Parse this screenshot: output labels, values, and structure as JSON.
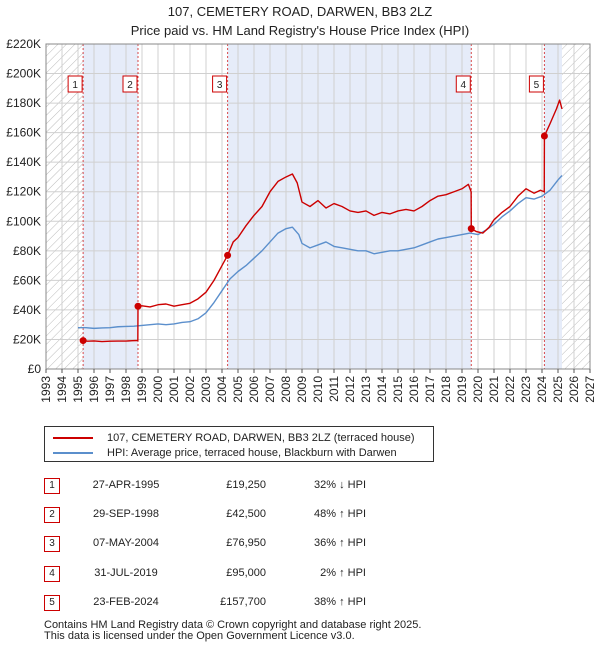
{
  "title": "107, CEMETERY ROAD, DARWEN, BB3 2LZ",
  "subtitle": "Price paid vs. HM Land Registry's House Price Index (HPI)",
  "colors": {
    "property": "#cc0000",
    "hpi": "#5b8fcc",
    "shade": "#e6ecf9",
    "grid": "#d0d0d0"
  },
  "chart_data": {
    "type": "line",
    "title": "107, CEMETERY ROAD, DARWEN, BB3 2LZ",
    "subtitle": "Price paid vs. HM Land Registry's House Price Index (HPI)",
    "xlim": [
      1993,
      2027
    ],
    "ylim": [
      0,
      220000
    ],
    "y_ticks": [
      {
        "value": 0,
        "label": "£0"
      },
      {
        "value": 20000,
        "label": "£20K"
      },
      {
        "value": 40000,
        "label": "£40K"
      },
      {
        "value": 60000,
        "label": "£60K"
      },
      {
        "value": 80000,
        "label": "£80K"
      },
      {
        "value": 100000,
        "label": "£100K"
      },
      {
        "value": 120000,
        "label": "£120K"
      },
      {
        "value": 140000,
        "label": "£140K"
      },
      {
        "value": 160000,
        "label": "£160K"
      },
      {
        "value": 180000,
        "label": "£180K"
      },
      {
        "value": 200000,
        "label": "£200K"
      },
      {
        "value": 220000,
        "label": "£220K"
      }
    ],
    "x_ticks": [
      "1993",
      "1994",
      "1995",
      "1996",
      "1997",
      "1998",
      "1999",
      "2000",
      "2001",
      "2002",
      "2003",
      "2004",
      "2005",
      "2006",
      "2007",
      "2008",
      "2009",
      "2010",
      "2011",
      "2012",
      "2013",
      "2014",
      "2015",
      "2016",
      "2017",
      "2018",
      "2019",
      "2020",
      "2021",
      "2022",
      "2023",
      "2024",
      "2025",
      "2026",
      "2027"
    ],
    "grid": true,
    "hatched_ranges": [
      [
        1993,
        1995.32
      ],
      [
        2025.25,
        2027
      ]
    ],
    "shaded_ranges": [
      [
        1995.32,
        1998.75
      ],
      [
        2004.35,
        2019.58
      ],
      [
        2024.15,
        2025.25
      ]
    ],
    "series": [
      {
        "name": "107, CEMETERY ROAD, DARWEN, BB3 2LZ (terraced house)",
        "color": "#cc0000",
        "points": [
          [
            1995.32,
            19250
          ],
          [
            1995.6,
            18800
          ],
          [
            1996.0,
            19000
          ],
          [
            1996.5,
            18600
          ],
          [
            1997.0,
            18800
          ],
          [
            1997.5,
            18900
          ],
          [
            1998.0,
            18900
          ],
          [
            1998.4,
            19200
          ],
          [
            1998.74,
            19300
          ],
          [
            1998.75,
            42500
          ],
          [
            1999.0,
            42800
          ],
          [
            1999.5,
            42000
          ],
          [
            2000.0,
            43500
          ],
          [
            2000.5,
            44000
          ],
          [
            2001.0,
            42500
          ],
          [
            2001.5,
            43500
          ],
          [
            2002.0,
            44500
          ],
          [
            2002.5,
            47500
          ],
          [
            2003.0,
            52000
          ],
          [
            2003.5,
            60000
          ],
          [
            2004.0,
            70000
          ],
          [
            2004.35,
            76950
          ],
          [
            2004.7,
            86000
          ],
          [
            2005.0,
            89000
          ],
          [
            2005.5,
            97000
          ],
          [
            2006.0,
            104000
          ],
          [
            2006.5,
            110000
          ],
          [
            2007.0,
            120000
          ],
          [
            2007.5,
            127000
          ],
          [
            2008.0,
            130000
          ],
          [
            2008.4,
            132000
          ],
          [
            2008.7,
            126000
          ],
          [
            2009.0,
            113000
          ],
          [
            2009.5,
            110000
          ],
          [
            2010.0,
            114000
          ],
          [
            2010.5,
            109000
          ],
          [
            2011.0,
            112000
          ],
          [
            2011.5,
            110000
          ],
          [
            2012.0,
            107000
          ],
          [
            2012.5,
            106000
          ],
          [
            2013.0,
            107000
          ],
          [
            2013.5,
            104000
          ],
          [
            2014.0,
            106000
          ],
          [
            2014.5,
            105000
          ],
          [
            2015.0,
            107000
          ],
          [
            2015.5,
            108000
          ],
          [
            2016.0,
            107000
          ],
          [
            2016.5,
            110000
          ],
          [
            2017.0,
            114000
          ],
          [
            2017.5,
            117000
          ],
          [
            2018.0,
            118000
          ],
          [
            2018.5,
            120000
          ],
          [
            2019.0,
            122000
          ],
          [
            2019.4,
            125000
          ],
          [
            2019.57,
            120000
          ],
          [
            2019.58,
            95000
          ],
          [
            2019.9,
            93000
          ],
          [
            2020.3,
            92000
          ],
          [
            2020.7,
            96000
          ],
          [
            2021.0,
            101000
          ],
          [
            2021.5,
            106000
          ],
          [
            2022.0,
            110000
          ],
          [
            2022.5,
            117000
          ],
          [
            2023.0,
            122000
          ],
          [
            2023.5,
            119000
          ],
          [
            2023.9,
            121000
          ],
          [
            2024.14,
            120000
          ],
          [
            2024.15,
            157700
          ],
          [
            2024.5,
            166000
          ],
          [
            2024.9,
            176000
          ],
          [
            2025.1,
            182000
          ],
          [
            2025.25,
            176000
          ]
        ]
      },
      {
        "name": "HPI: Average price, terraced house, Blackburn with Darwen",
        "color": "#5b8fcc",
        "points": [
          [
            1995.0,
            28000
          ],
          [
            1995.5,
            28000
          ],
          [
            1996.0,
            27500
          ],
          [
            1996.5,
            27800
          ],
          [
            1997.0,
            28000
          ],
          [
            1997.5,
            28600
          ],
          [
            1998.0,
            28800
          ],
          [
            1998.5,
            29000
          ],
          [
            1999.0,
            29500
          ],
          [
            1999.5,
            30000
          ],
          [
            2000.0,
            30500
          ],
          [
            2000.5,
            30000
          ],
          [
            2001.0,
            30500
          ],
          [
            2001.5,
            31500
          ],
          [
            2002.0,
            32000
          ],
          [
            2002.5,
            34000
          ],
          [
            2003.0,
            38000
          ],
          [
            2003.5,
            45000
          ],
          [
            2004.0,
            53000
          ],
          [
            2004.5,
            61000
          ],
          [
            2005.0,
            66000
          ],
          [
            2005.5,
            70000
          ],
          [
            2006.0,
            75000
          ],
          [
            2006.5,
            80000
          ],
          [
            2007.0,
            86000
          ],
          [
            2007.5,
            92000
          ],
          [
            2008.0,
            95000
          ],
          [
            2008.4,
            96000
          ],
          [
            2008.8,
            91000
          ],
          [
            2009.0,
            85000
          ],
          [
            2009.5,
            82000
          ],
          [
            2010.0,
            84000
          ],
          [
            2010.5,
            86000
          ],
          [
            2011.0,
            83000
          ],
          [
            2011.5,
            82000
          ],
          [
            2012.0,
            81000
          ],
          [
            2012.5,
            80000
          ],
          [
            2013.0,
            80000
          ],
          [
            2013.5,
            78000
          ],
          [
            2014.0,
            79000
          ],
          [
            2014.5,
            80000
          ],
          [
            2015.0,
            80000
          ],
          [
            2015.5,
            81000
          ],
          [
            2016.0,
            82000
          ],
          [
            2016.5,
            84000
          ],
          [
            2017.0,
            86000
          ],
          [
            2017.5,
            88000
          ],
          [
            2018.0,
            89000
          ],
          [
            2018.5,
            90000
          ],
          [
            2019.0,
            91000
          ],
          [
            2019.5,
            92000
          ],
          [
            2020.0,
            91000
          ],
          [
            2020.5,
            94000
          ],
          [
            2021.0,
            98000
          ],
          [
            2021.5,
            103000
          ],
          [
            2022.0,
            107000
          ],
          [
            2022.5,
            112000
          ],
          [
            2023.0,
            116000
          ],
          [
            2023.5,
            115000
          ],
          [
            2024.0,
            117000
          ],
          [
            2024.5,
            121000
          ],
          [
            2025.0,
            128000
          ],
          [
            2025.25,
            131000
          ]
        ]
      }
    ],
    "sales": [
      {
        "n": "1",
        "year": 1995.32,
        "date": "27-APR-1995",
        "price": 19250,
        "price_label": "£19,250",
        "hpi": "32% ↓ HPI"
      },
      {
        "n": "2",
        "year": 1998.75,
        "date": "29-SEP-1998",
        "price": 42500,
        "price_label": "£42,500",
        "hpi": "48% ↑ HPI"
      },
      {
        "n": "3",
        "year": 2004.35,
        "date": "07-MAY-2004",
        "price": 76950,
        "price_label": "£76,950",
        "hpi": "36% ↑ HPI"
      },
      {
        "n": "4",
        "year": 2019.58,
        "date": "31-JUL-2019",
        "price": 95000,
        "price_label": "£95,000",
        "hpi": "2% ↑ HPI"
      },
      {
        "n": "5",
        "year": 2024.15,
        "date": "23-FEB-2024",
        "price": 157700,
        "price_label": "£157,700",
        "hpi": "38% ↑ HPI"
      }
    ]
  },
  "legend": {
    "property": "107, CEMETERY ROAD, DARWEN, BB3 2LZ (terraced house)",
    "hpi": "HPI: Average price, terraced house, Blackburn with Darwen"
  },
  "footer": {
    "line1": "Contains HM Land Registry data © Crown copyright and database right 2025.",
    "line2": "This data is licensed under the Open Government Licence v3.0."
  }
}
